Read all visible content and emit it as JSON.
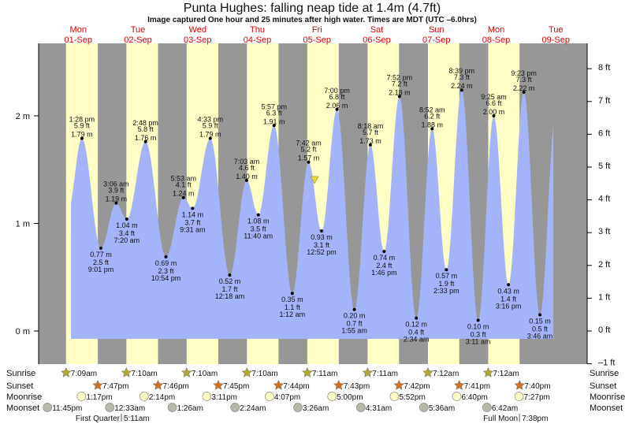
{
  "chart_data": {
    "type": "area",
    "title": "Punta Hughes: falling  neap tide at 1.4m (4.7ft)",
    "subtitle": "Image captured One hour and 25 minutes after high water. Times are MDT (UTC –6.0hrs)",
    "colors": {
      "water": "#a3b4fb",
      "day": "#ffffc6",
      "night": "#979797",
      "day_label": "#e00000",
      "current_marker": "#e8e020",
      "sunrise_icon": "#b0a830",
      "sunset_icon": "#d07020",
      "moonrise_icon": "#ffffc6",
      "moonset_icon": "#b8b8a8"
    },
    "days": [
      {
        "dow": "Mon",
        "date": "01-Sep"
      },
      {
        "dow": "Tue",
        "date": "02-Sep"
      },
      {
        "dow": "Wed",
        "date": "03-Sep"
      },
      {
        "dow": "Thu",
        "date": "04-Sep"
      },
      {
        "dow": "Fri",
        "date": "05-Sep"
      },
      {
        "dow": "Sat",
        "date": "06-Sep"
      },
      {
        "dow": "Sun",
        "date": "07-Sep"
      },
      {
        "dow": "Mon",
        "date": "08-Sep"
      },
      {
        "dow": "Tue",
        "date": "09-Sep"
      }
    ],
    "y_axis_left": {
      "unit": "m",
      "ticks": [
        "0 m",
        "1 m",
        "2 m"
      ],
      "values": [
        0,
        1,
        2
      ]
    },
    "y_axis_right": {
      "unit": "ft",
      "ticks": [
        "–1 ft",
        "0 ft",
        "1 ft",
        "2 ft",
        "3 ft",
        "4 ft",
        "5 ft",
        "6 ft",
        "7 ft",
        "8 ft"
      ],
      "values": [
        -1,
        0,
        1,
        2,
        3,
        4,
        5,
        6,
        7,
        8
      ]
    },
    "current": {
      "day": 4,
      "time": "09:07",
      "height_m": 1.4,
      "height_ft": 4.7,
      "state": "falling"
    },
    "extremes": [
      {
        "day": 0,
        "time": "13:28",
        "type": "high",
        "label": "1:28 pm",
        "ft": "5.9 ft",
        "m": 1.79,
        "m_label": "1.79 m"
      },
      {
        "day": 0,
        "time": "21:01",
        "type": "low",
        "label": "9:01 pm",
        "ft": "2.5 ft",
        "m": 0.77,
        "m_label": "0.77 m"
      },
      {
        "day": 1,
        "time": "03:06",
        "type": "high",
        "label": "3:06 am",
        "ft": "3.9 ft",
        "m": 1.19,
        "m_label": "1.19 m"
      },
      {
        "day": 1,
        "time": "07:20",
        "type": "low",
        "label": "7:20 am",
        "ft": "3.4 ft",
        "m": 1.04,
        "m_label": "1.04 m"
      },
      {
        "day": 1,
        "time": "14:48",
        "type": "high",
        "label": "2:48 pm",
        "ft": "5.8 ft",
        "m": 1.76,
        "m_label": "1.76 m"
      },
      {
        "day": 1,
        "time": "22:54",
        "type": "low",
        "label": "10:54 pm",
        "ft": "2.3 ft",
        "m": 0.69,
        "m_label": "0.69 m"
      },
      {
        "day": 2,
        "time": "05:53",
        "type": "high",
        "label": "5:53 am",
        "ft": "4.1 ft",
        "m": 1.24,
        "m_label": "1.24 m"
      },
      {
        "day": 2,
        "time": "09:31",
        "type": "low",
        "label": "9:31 am",
        "ft": "3.7 ft",
        "m": 1.14,
        "m_label": "1.14 m"
      },
      {
        "day": 2,
        "time": "16:33",
        "type": "high",
        "label": "4:33 pm",
        "ft": "5.9 ft",
        "m": 1.79,
        "m_label": "1.79 m"
      },
      {
        "day": 3,
        "time": "00:18",
        "type": "low",
        "label": "12:18 am",
        "ft": "1.7 ft",
        "m": 0.52,
        "m_label": "0.52 m"
      },
      {
        "day": 3,
        "time": "07:03",
        "type": "high",
        "label": "7:03 am",
        "ft": "4.6 ft",
        "m": 1.4,
        "m_label": "1.40 m"
      },
      {
        "day": 3,
        "time": "11:40",
        "type": "low",
        "label": "11:40 am",
        "ft": "3.5 ft",
        "m": 1.08,
        "m_label": "1.08 m"
      },
      {
        "day": 3,
        "time": "17:57",
        "type": "high",
        "label": "5:57 pm",
        "ft": "6.3 ft",
        "m": 1.91,
        "m_label": "1.91 m"
      },
      {
        "day": 4,
        "time": "01:12",
        "type": "low",
        "label": "1:12 am",
        "ft": "1.1 ft",
        "m": 0.35,
        "m_label": "0.35 m"
      },
      {
        "day": 4,
        "time": "07:42",
        "type": "high",
        "label": "7:42 am",
        "ft": "5.2 ft",
        "m": 1.57,
        "m_label": "1.57 m"
      },
      {
        "day": 4,
        "time": "12:52",
        "type": "low",
        "label": "12:52 pm",
        "ft": "3.1 ft",
        "m": 0.93,
        "m_label": "0.93 m"
      },
      {
        "day": 4,
        "time": "19:00",
        "type": "high",
        "label": "7:00 pm",
        "ft": "6.8 ft",
        "m": 2.06,
        "m_label": "2.06 m"
      },
      {
        "day": 5,
        "time": "01:55",
        "type": "low",
        "label": "1:55 am",
        "ft": "0.7 ft",
        "m": 0.2,
        "m_label": "0.20 m"
      },
      {
        "day": 5,
        "time": "08:18",
        "type": "high",
        "label": "8:18 am",
        "ft": "5.7 ft",
        "m": 1.73,
        "m_label": "1.73 m"
      },
      {
        "day": 5,
        "time": "13:46",
        "type": "low",
        "label": "1:46 pm",
        "ft": "2.4 ft",
        "m": 0.74,
        "m_label": "0.74 m"
      },
      {
        "day": 5,
        "time": "19:52",
        "type": "high",
        "label": "7:52 pm",
        "ft": "7.2 ft",
        "m": 2.18,
        "m_label": "2.18 m"
      },
      {
        "day": 6,
        "time": "02:34",
        "type": "low",
        "label": "2:34 am",
        "ft": "0.4 ft",
        "m": 0.12,
        "m_label": "0.12 m"
      },
      {
        "day": 6,
        "time": "08:52",
        "type": "high",
        "label": "8:52 am",
        "ft": "6.2 ft",
        "m": 1.88,
        "m_label": "1.88 m"
      },
      {
        "day": 6,
        "time": "14:33",
        "type": "low",
        "label": "2:33 pm",
        "ft": "1.9 ft",
        "m": 0.57,
        "m_label": "0.57 m"
      },
      {
        "day": 6,
        "time": "20:39",
        "type": "high",
        "label": "8:39 pm",
        "ft": "7.3 ft",
        "m": 2.24,
        "m_label": "2.24 m"
      },
      {
        "day": 7,
        "time": "03:11",
        "type": "low",
        "label": "3:11 am",
        "ft": "0.3 ft",
        "m": 0.1,
        "m_label": "0.10 m"
      },
      {
        "day": 7,
        "time": "09:25",
        "type": "high",
        "label": "9:25 am",
        "ft": "6.6 ft",
        "m": 2.0,
        "m_label": "2.00 m"
      },
      {
        "day": 7,
        "time": "15:16",
        "type": "low",
        "label": "3:16 pm",
        "ft": "1.4 ft",
        "m": 0.43,
        "m_label": "0.43 m"
      },
      {
        "day": 7,
        "time": "21:23",
        "type": "high",
        "label": "9:23 pm",
        "ft": "7.3 ft",
        "m": 2.22,
        "m_label": "2.22 m"
      },
      {
        "day": 8,
        "time": "03:46",
        "type": "low",
        "label": "3:46 am",
        "ft": "0.5 ft",
        "m": 0.15,
        "m_label": "0.15 m"
      }
    ],
    "rows": {
      "labels": {
        "sunrise": "Sunrise",
        "sunset": "Sunset",
        "moonrise": "Moonrise",
        "moonset": "Moonset"
      },
      "sunrise": [
        {
          "day": 0,
          "time": "07:09",
          "label": "7:09am"
        },
        {
          "day": 1,
          "time": "07:10",
          "label": "7:10am"
        },
        {
          "day": 2,
          "time": "07:10",
          "label": "7:10am"
        },
        {
          "day": 3,
          "time": "07:10",
          "label": "7:10am"
        },
        {
          "day": 4,
          "time": "07:11",
          "label": "7:11am"
        },
        {
          "day": 5,
          "time": "07:11",
          "label": "7:11am"
        },
        {
          "day": 6,
          "time": "07:12",
          "label": "7:12am"
        },
        {
          "day": 7,
          "time": "07:12",
          "label": "7:12am"
        }
      ],
      "sunset": [
        {
          "day": 0,
          "time": "19:47",
          "label": "7:47pm"
        },
        {
          "day": 1,
          "time": "19:46",
          "label": "7:46pm"
        },
        {
          "day": 2,
          "time": "19:45",
          "label": "7:45pm"
        },
        {
          "day": 3,
          "time": "19:44",
          "label": "7:44pm"
        },
        {
          "day": 4,
          "time": "19:43",
          "label": "7:43pm"
        },
        {
          "day": 5,
          "time": "19:42",
          "label": "7:42pm"
        },
        {
          "day": 6,
          "time": "19:41",
          "label": "7:41pm"
        },
        {
          "day": 7,
          "time": "19:40",
          "label": "7:40pm"
        }
      ],
      "moonrise": [
        {
          "day": 0,
          "time": "13:17",
          "label": "1:17pm"
        },
        {
          "day": 1,
          "time": "14:14",
          "label": "2:14pm"
        },
        {
          "day": 2,
          "time": "15:11",
          "label": "3:11pm"
        },
        {
          "day": 3,
          "time": "16:07",
          "label": "4:07pm"
        },
        {
          "day": 4,
          "time": "17:00",
          "label": "5:00pm"
        },
        {
          "day": 5,
          "time": "17:52",
          "label": "5:52pm"
        },
        {
          "day": 6,
          "time": "18:40",
          "label": "6:40pm"
        },
        {
          "day": 7,
          "time": "19:27",
          "label": "7:27pm"
        }
      ],
      "moonset": [
        {
          "day": -1,
          "time": "23:45",
          "label": "11:45pm"
        },
        {
          "day": 1,
          "time": "00:33",
          "label": "12:33am"
        },
        {
          "day": 2,
          "time": "01:26",
          "label": "1:26am"
        },
        {
          "day": 3,
          "time": "02:24",
          "label": "2:24am"
        },
        {
          "day": 4,
          "time": "03:26",
          "label": "3:26am"
        },
        {
          "day": 5,
          "time": "04:31",
          "label": "4:31am"
        },
        {
          "day": 6,
          "time": "05:36",
          "label": "5:36am"
        },
        {
          "day": 7,
          "time": "06:42",
          "label": "6:42am"
        }
      ],
      "moon_phases": [
        {
          "day": 1,
          "time": "05:11",
          "name": "First Quarter",
          "label": "5:11am"
        },
        {
          "day": 7,
          "time": "19:38",
          "name": "Full Moon",
          "label": "7:38pm"
        }
      ]
    }
  }
}
